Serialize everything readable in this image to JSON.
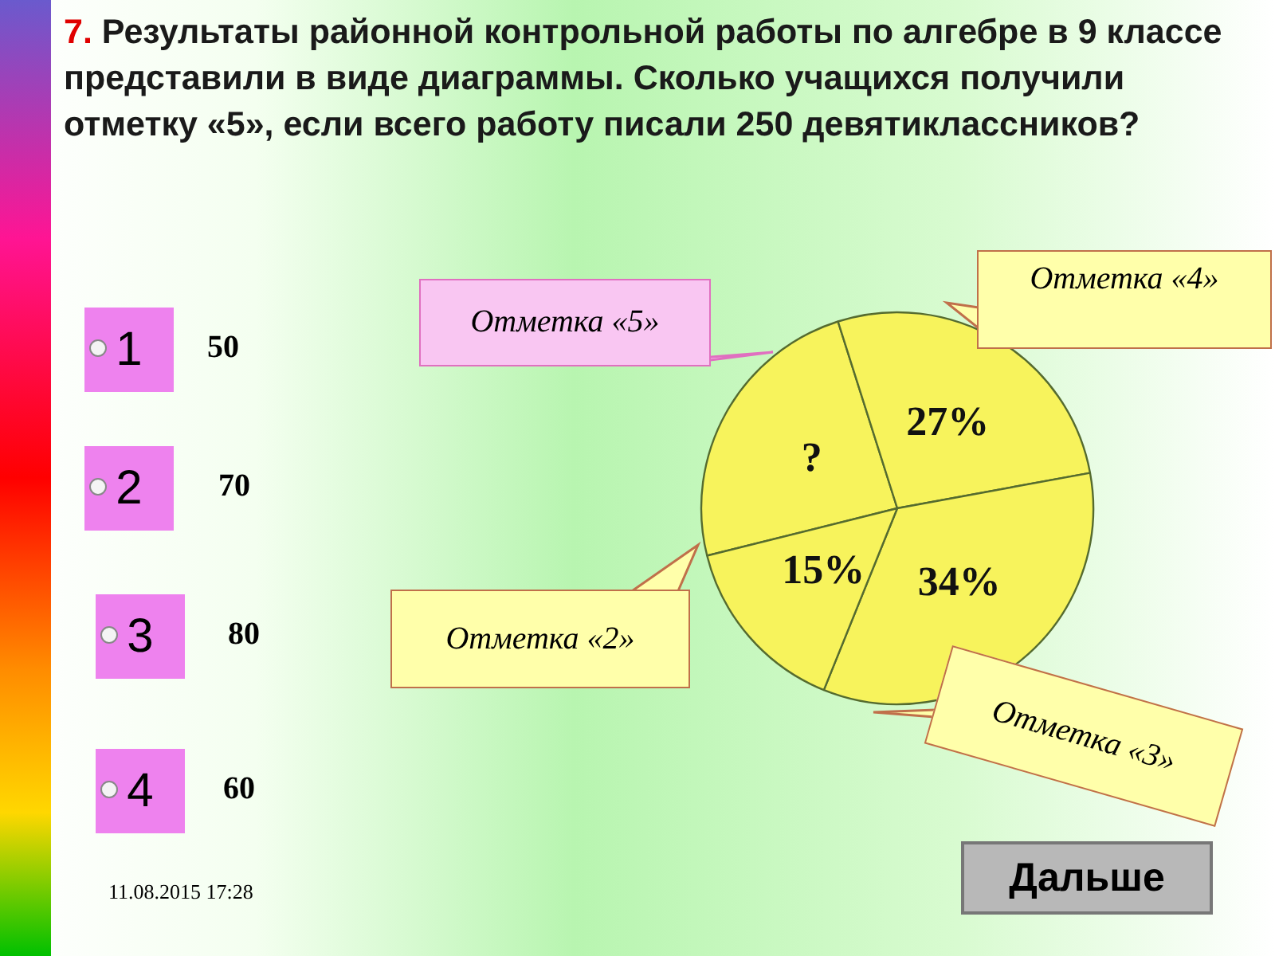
{
  "chart_data": {
    "type": "pie",
    "title": "7. Результаты районной контрольной работы по алгебре в 9 классе представили в виде диаграммы. Сколько учащихся получили отметку «5», если всего работу писали 250 девятиклассников?",
    "categories": [
      "Отметка «5»",
      "Отметка «4»",
      "Отметка «3»",
      "Отметка «2»"
    ],
    "values": [
      24,
      27,
      34,
      15
    ],
    "value_labels": [
      "?",
      "27%",
      "34%",
      "15%"
    ],
    "colors": [
      "#f7f35c",
      "#f7f35c",
      "#f7f35c",
      "#f7f35c"
    ],
    "legend": false,
    "annotations": [
      "1",
      "50",
      "2",
      "70",
      "3",
      "80",
      "4",
      "60",
      "11.08.2015 17:28",
      "Дальше"
    ]
  }
}
